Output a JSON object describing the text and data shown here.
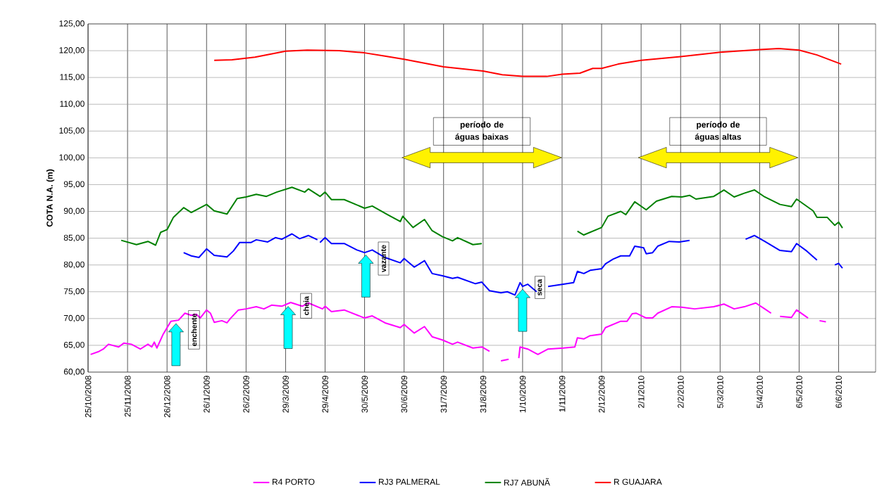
{
  "chart_data": {
    "type": "line",
    "ylabel": "COTA N.A. (m)",
    "legend": "bottom",
    "grid": true,
    "xlim": [
      "2008-10-25",
      "2010-07-05"
    ],
    "ylim": [
      60,
      125
    ],
    "xticks": [
      {
        "value": "2008-10-25",
        "label": "25/10/2008"
      },
      {
        "value": "2008-11-25",
        "label": "25/11/2008"
      },
      {
        "value": "2008-12-26",
        "label": "26/12/2008"
      },
      {
        "value": "2009-01-26",
        "label": "26/1/2009"
      },
      {
        "value": "2009-02-26",
        "label": "26/2/2009"
      },
      {
        "value": "2009-03-29",
        "label": "29/3/2009"
      },
      {
        "value": "2009-04-29",
        "label": "29/4/2009"
      },
      {
        "value": "2009-05-30",
        "label": "30/5/2009"
      },
      {
        "value": "2009-06-30",
        "label": "30/6/2009"
      },
      {
        "value": "2009-07-31",
        "label": "31/7/2009"
      },
      {
        "value": "2009-08-31",
        "label": "31/8/2009"
      },
      {
        "value": "2009-10-01",
        "label": "1/10/2009"
      },
      {
        "value": "2009-11-01",
        "label": "1/11/2009"
      },
      {
        "value": "2009-12-02",
        "label": "2/12/2009"
      },
      {
        "value": "2010-01-02",
        "label": "2/1/2010"
      },
      {
        "value": "2010-02-02",
        "label": "2/2/2010"
      },
      {
        "value": "2010-03-05",
        "label": "5/3/2010"
      },
      {
        "value": "2010-04-05",
        "label": "5/4/2010"
      },
      {
        "value": "2010-05-06",
        "label": "6/5/2010"
      },
      {
        "value": "2010-06-06",
        "label": "6/6/2010"
      }
    ],
    "yticks": [
      {
        "value": 60,
        "label": "60,00"
      },
      {
        "value": 65,
        "label": "65,00"
      },
      {
        "value": 70,
        "label": "70,00"
      },
      {
        "value": 75,
        "label": "75,00"
      },
      {
        "value": 80,
        "label": "80,00"
      },
      {
        "value": 85,
        "label": "85,00"
      },
      {
        "value": 90,
        "label": "90,00"
      },
      {
        "value": 95,
        "label": "95,00"
      },
      {
        "value": 100,
        "label": "100,00"
      },
      {
        "value": 105,
        "label": "105,00"
      },
      {
        "value": 110,
        "label": "110,00"
      },
      {
        "value": 115,
        "label": "115,00"
      },
      {
        "value": 120,
        "label": "120,00"
      },
      {
        "value": 125,
        "label": "125,00"
      }
    ],
    "series": [
      {
        "name": "R4 PORTO",
        "color": "#ff00ff",
        "x": [
          "2008-10-27",
          "2008-11-02",
          "2008-11-06",
          "2008-11-10",
          "2008-11-18",
          "2008-11-22",
          "2008-11-28",
          "2008-12-05",
          "2008-12-11",
          "2008-12-14",
          "2008-12-16",
          "2008-12-18",
          "2008-12-23",
          "2008-12-29",
          "2009-01-04",
          "2009-01-09",
          "2009-01-14",
          "2009-01-18",
          "2009-01-21",
          "2009-01-26",
          "2009-01-29",
          "2009-02-01",
          "2009-02-07",
          "2009-02-11",
          "2009-02-14",
          "2009-02-20",
          "2009-02-26",
          "2009-03-06",
          "2009-03-12",
          "2009-03-18",
          "2009-03-26",
          "2009-04-02",
          "2009-04-11",
          "2009-04-16",
          "2009-04-27",
          "2009-04-29",
          "2009-05-04",
          "2009-05-14",
          "2009-05-30",
          "2009-06-05",
          "2009-06-15",
          "2009-06-27",
          "2009-06-30",
          "2009-07-08",
          "2009-07-16",
          "2009-07-22",
          "2009-07-30",
          "2009-08-07",
          "2009-08-11",
          "2009-08-23",
          "2009-08-30",
          "2009-09-05",
          "2009-09-09",
          "2009-09-14",
          "2009-09-20",
          "2009-09-24",
          "2009-09-28",
          "2009-09-29",
          "2009-10-05",
          "2009-10-13",
          "2009-10-21",
          "2009-11-02",
          "2009-11-11",
          "2009-11-13",
          "2009-11-18",
          "2009-11-23",
          "2009-12-02",
          "2009-12-05",
          "2009-12-17",
          "2009-12-22",
          "2009-12-26",
          "2009-12-29",
          "2010-01-06",
          "2010-01-11",
          "2010-01-15",
          "2010-01-26",
          "2010-02-03",
          "2010-02-13",
          "2010-02-28",
          "2010-03-08",
          "2010-03-16",
          "2010-03-24",
          "2010-04-02",
          "2010-04-09",
          "2010-04-14",
          "2010-04-17",
          "2010-04-21",
          "2010-04-30",
          "2010-05-04",
          "2010-05-13",
          "2010-05-18",
          "2010-05-22",
          "2010-05-27"
        ],
        "values": [
          63.3,
          63.8,
          64.3,
          65.2,
          64.7,
          65.4,
          65.2,
          64.3,
          65.2,
          64.7,
          65.6,
          64.5,
          67.1,
          69.5,
          69.7,
          71.0,
          70.6,
          70.8,
          70.1,
          71.6,
          71.0,
          69.3,
          69.6,
          69.2,
          70.1,
          71.6,
          71.8,
          72.2,
          71.8,
          72.5,
          72.3,
          73.0,
          72.3,
          72.9,
          71.8,
          72.3,
          71.3,
          71.6,
          70.1,
          70.5,
          69.2,
          68.3,
          68.9,
          67.3,
          68.5,
          66.6,
          66.0,
          65.2,
          65.6,
          64.5,
          64.7,
          63.9,
          null,
          62.1,
          62.4,
          null,
          62.6,
          64.7,
          64.3,
          63.3,
          64.3,
          64.5,
          64.7,
          66.4,
          66.2,
          66.8,
          67.1,
          68.3,
          69.5,
          69.5,
          70.9,
          71.0,
          70.1,
          70.1,
          71.0,
          72.2,
          72.1,
          71.8,
          72.2,
          72.7,
          71.8,
          72.2,
          72.9,
          71.8,
          71.0,
          null,
          70.4,
          70.2,
          71.6,
          70.1,
          null,
          69.6,
          69.4
        ]
      },
      {
        "name": "RJ3 PALMERAL",
        "color": "#0000ff",
        "x": [
          "2009-01-08",
          "2009-01-14",
          "2009-01-20",
          "2009-01-26",
          "2009-02-01",
          "2009-02-11",
          "2009-02-16",
          "2009-02-21",
          "2009-03-02",
          "2009-03-06",
          "2009-03-15",
          "2009-03-21",
          "2009-03-26",
          "2009-04-03",
          "2009-04-09",
          "2009-04-16",
          "2009-04-23",
          "2009-04-24",
          "2009-04-25",
          "2009-04-29",
          "2009-05-04",
          "2009-05-14",
          "2009-05-24",
          "2009-05-30",
          "2009-06-05",
          "2009-06-15",
          "2009-06-27",
          "2009-06-30",
          "2009-07-08",
          "2009-07-16",
          "2009-07-22",
          "2009-07-30",
          "2009-08-07",
          "2009-08-11",
          "2009-08-25",
          "2009-08-30",
          "2009-09-05",
          "2009-09-14",
          "2009-09-19",
          "2009-09-25",
          "2009-09-29",
          "2009-10-01",
          "2009-10-05",
          "2009-10-12",
          "2009-10-15",
          "2009-10-21",
          "2009-11-02",
          "2009-11-10",
          "2009-11-13",
          "2009-11-18",
          "2009-11-23",
          "2009-12-02",
          "2009-12-05",
          "2009-12-11",
          "2009-12-17",
          "2009-12-24",
          "2009-12-28",
          "2010-01-04",
          "2010-01-06",
          "2010-01-11",
          "2010-01-15",
          "2010-01-24",
          "2010-02-01",
          "2010-02-09",
          "2010-02-20",
          "2010-03-25",
          "2010-04-01",
          "2010-04-09",
          "2010-04-21",
          "2010-04-30",
          "2010-05-04",
          "2010-05-12",
          "2010-05-20",
          "2010-05-25",
          "2010-06-03",
          "2010-06-06",
          "2010-06-09"
        ],
        "values": [
          82.3,
          81.7,
          81.4,
          83.0,
          81.8,
          81.5,
          82.6,
          84.2,
          84.2,
          84.7,
          84.3,
          85.1,
          84.8,
          85.8,
          84.9,
          85.5,
          84.7,
          null,
          84.2,
          85.1,
          84.0,
          84.0,
          82.8,
          82.3,
          82.8,
          81.4,
          80.4,
          81.2,
          79.6,
          80.8,
          78.4,
          78.0,
          77.5,
          77.7,
          76.5,
          76.8,
          75.2,
          74.8,
          75.0,
          74.4,
          76.7,
          76.0,
          76.4,
          75.0,
          null,
          76.0,
          76.4,
          76.7,
          78.8,
          78.4,
          79.0,
          79.3,
          80.2,
          81.1,
          81.7,
          81.7,
          83.5,
          83.2,
          82.1,
          82.3,
          83.5,
          84.4,
          84.3,
          84.6,
          null,
          84.8,
          85.5,
          84.4,
          82.7,
          82.5,
          84.0,
          82.6,
          80.9,
          null,
          80.0,
          80.3,
          79.4
        ]
      },
      {
        "name": "RJ7 ABUNÃ",
        "color": "#008000",
        "x": [
          "2008-11-20",
          "2008-12-02",
          "2008-12-11",
          "2008-12-17",
          "2008-12-21",
          "2008-12-26",
          "2008-12-31",
          "2009-01-08",
          "2009-01-14",
          "2009-01-26",
          "2009-02-01",
          "2009-02-11",
          "2009-02-19",
          "2009-02-26",
          "2009-03-06",
          "2009-03-14",
          "2009-03-22",
          "2009-04-03",
          "2009-04-13",
          "2009-04-16",
          "2009-04-25",
          "2009-04-29",
          "2009-05-04",
          "2009-05-14",
          "2009-05-30",
          "2009-06-05",
          "2009-06-17",
          "2009-06-27",
          "2009-06-29",
          "2009-07-07",
          "2009-07-16",
          "2009-07-22",
          "2009-07-30",
          "2009-08-07",
          "2009-08-11",
          "2009-08-23",
          "2009-08-30",
          "2009-10-01",
          "2009-11-13",
          "2009-11-18",
          "2009-12-02",
          "2009-12-07",
          "2009-12-17",
          "2009-12-21",
          "2009-12-28",
          "2010-01-06",
          "2010-01-14",
          "2010-01-26",
          "2010-02-03",
          "2010-02-09",
          "2010-02-14",
          "2010-02-28",
          "2010-03-08",
          "2010-03-16",
          "2010-03-24",
          "2010-04-01",
          "2010-04-09",
          "2010-04-21",
          "2010-04-30",
          "2010-05-04",
          "2010-05-17",
          "2010-05-20",
          "2010-05-28",
          "2010-06-03",
          "2010-06-06",
          "2010-06-09"
        ],
        "values": [
          84.6,
          83.8,
          84.4,
          83.7,
          86.1,
          86.6,
          88.9,
          90.7,
          89.8,
          91.3,
          90.1,
          89.5,
          92.4,
          92.7,
          93.2,
          92.8,
          93.6,
          94.5,
          93.6,
          94.2,
          92.8,
          93.6,
          92.2,
          92.2,
          90.6,
          91.0,
          89.4,
          88.1,
          89.1,
          87.0,
          88.5,
          86.4,
          85.3,
          84.5,
          85.1,
          83.8,
          84.0,
          null,
          86.3,
          85.6,
          87.0,
          89.1,
          90.0,
          89.4,
          91.8,
          90.3,
          91.9,
          92.8,
          92.7,
          93.0,
          92.3,
          92.8,
          94.0,
          92.7,
          93.4,
          94.0,
          92.7,
          91.3,
          90.9,
          92.3,
          90.1,
          88.9,
          88.9,
          87.4,
          88.0,
          86.9
        ]
      },
      {
        "name": "R GUAJARA",
        "color": "#ff0000",
        "x": [
          "2009-02-01",
          "2009-02-15",
          "2009-03-05",
          "2009-03-29",
          "2009-04-15",
          "2009-05-10",
          "2009-05-30",
          "2009-06-15",
          "2009-06-30",
          "2009-07-31",
          "2009-08-31",
          "2009-09-15",
          "2009-10-01",
          "2009-10-20",
          "2009-11-01",
          "2009-11-15",
          "2009-11-25",
          "2009-12-02",
          "2009-12-15",
          "2010-01-02",
          "2010-02-02",
          "2010-03-05",
          "2010-04-05",
          "2010-04-20",
          "2010-05-06",
          "2010-05-20",
          "2010-06-08"
        ],
        "values": [
          118.2,
          118.3,
          118.8,
          119.9,
          120.1,
          120.0,
          119.6,
          119.0,
          118.4,
          117.0,
          116.2,
          115.5,
          115.2,
          115.2,
          115.6,
          115.8,
          116.7,
          116.7,
          117.5,
          118.2,
          118.9,
          119.7,
          120.2,
          120.4,
          120.1,
          119.2,
          117.5
        ]
      }
    ],
    "annotations": [
      {
        "text": "enchente",
        "x": "2009-01-02",
        "y": 69.6
      },
      {
        "text": "cheia",
        "x": "2009-03-31",
        "y": 72.8
      },
      {
        "text": "vazante",
        "x": "2009-05-31",
        "y": 82.4
      },
      {
        "text": "seca",
        "x": "2009-10-01",
        "y": 76.0
      },
      "período de águas baixas",
      "período de águas altas"
    ]
  }
}
